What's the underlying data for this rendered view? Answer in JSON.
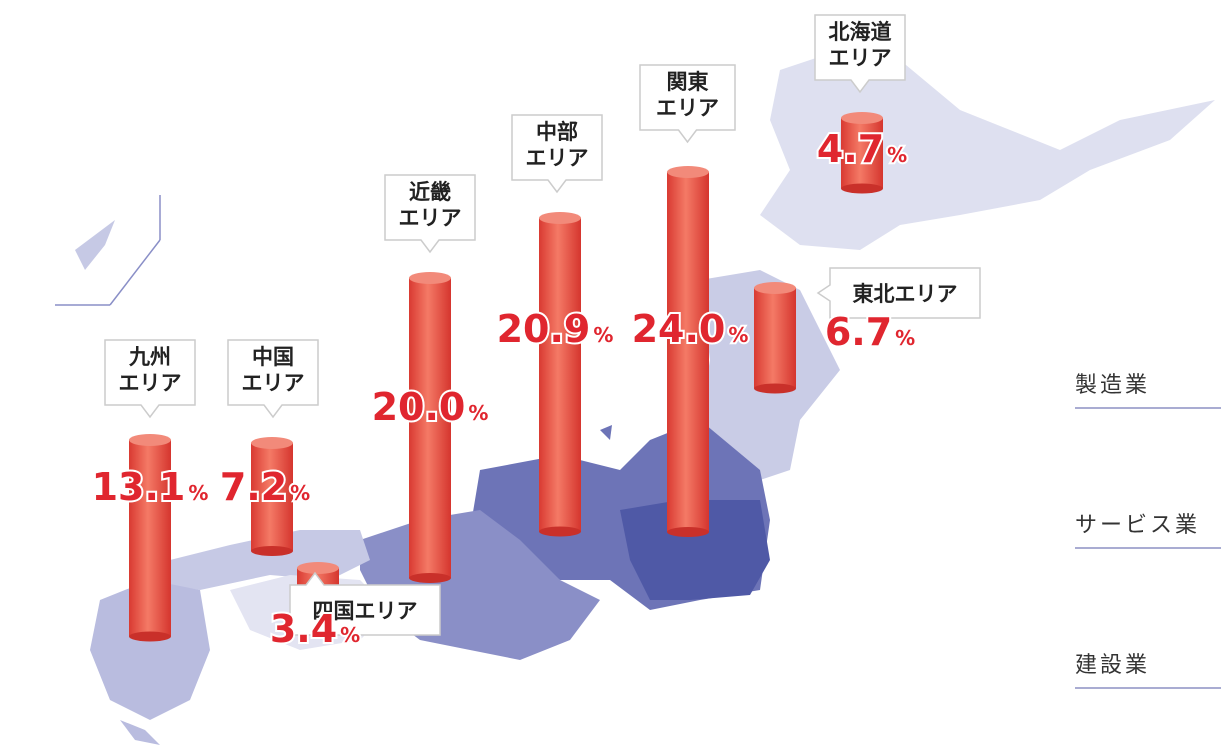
{
  "regions": [
    {
      "label": [
        "九州",
        "エリア"
      ],
      "value": 13.1,
      "unit": "%"
    },
    {
      "label": [
        "中国",
        "エリア"
      ],
      "value": 7.2,
      "unit": "%"
    },
    {
      "label": [
        "四国エリア"
      ],
      "value": 3.4,
      "unit": "%"
    },
    {
      "label": [
        "近畿",
        "エリア"
      ],
      "value": 20.0,
      "value_label": "20.0",
      "unit": "%"
    },
    {
      "label": [
        "中部",
        "エリア"
      ],
      "value": 20.9,
      "unit": "%"
    },
    {
      "label": [
        "関東",
        "エリア"
      ],
      "value": 24.0,
      "value_label": "24.0",
      "unit": "%"
    },
    {
      "label": [
        "東北エリア"
      ],
      "value": 6.7,
      "unit": "%"
    },
    {
      "label": [
        "北海道",
        "エリア"
      ],
      "value": 4.7,
      "unit": "%"
    }
  ],
  "industries": [
    "製造業",
    "サービス業",
    "建設業"
  ]
}
